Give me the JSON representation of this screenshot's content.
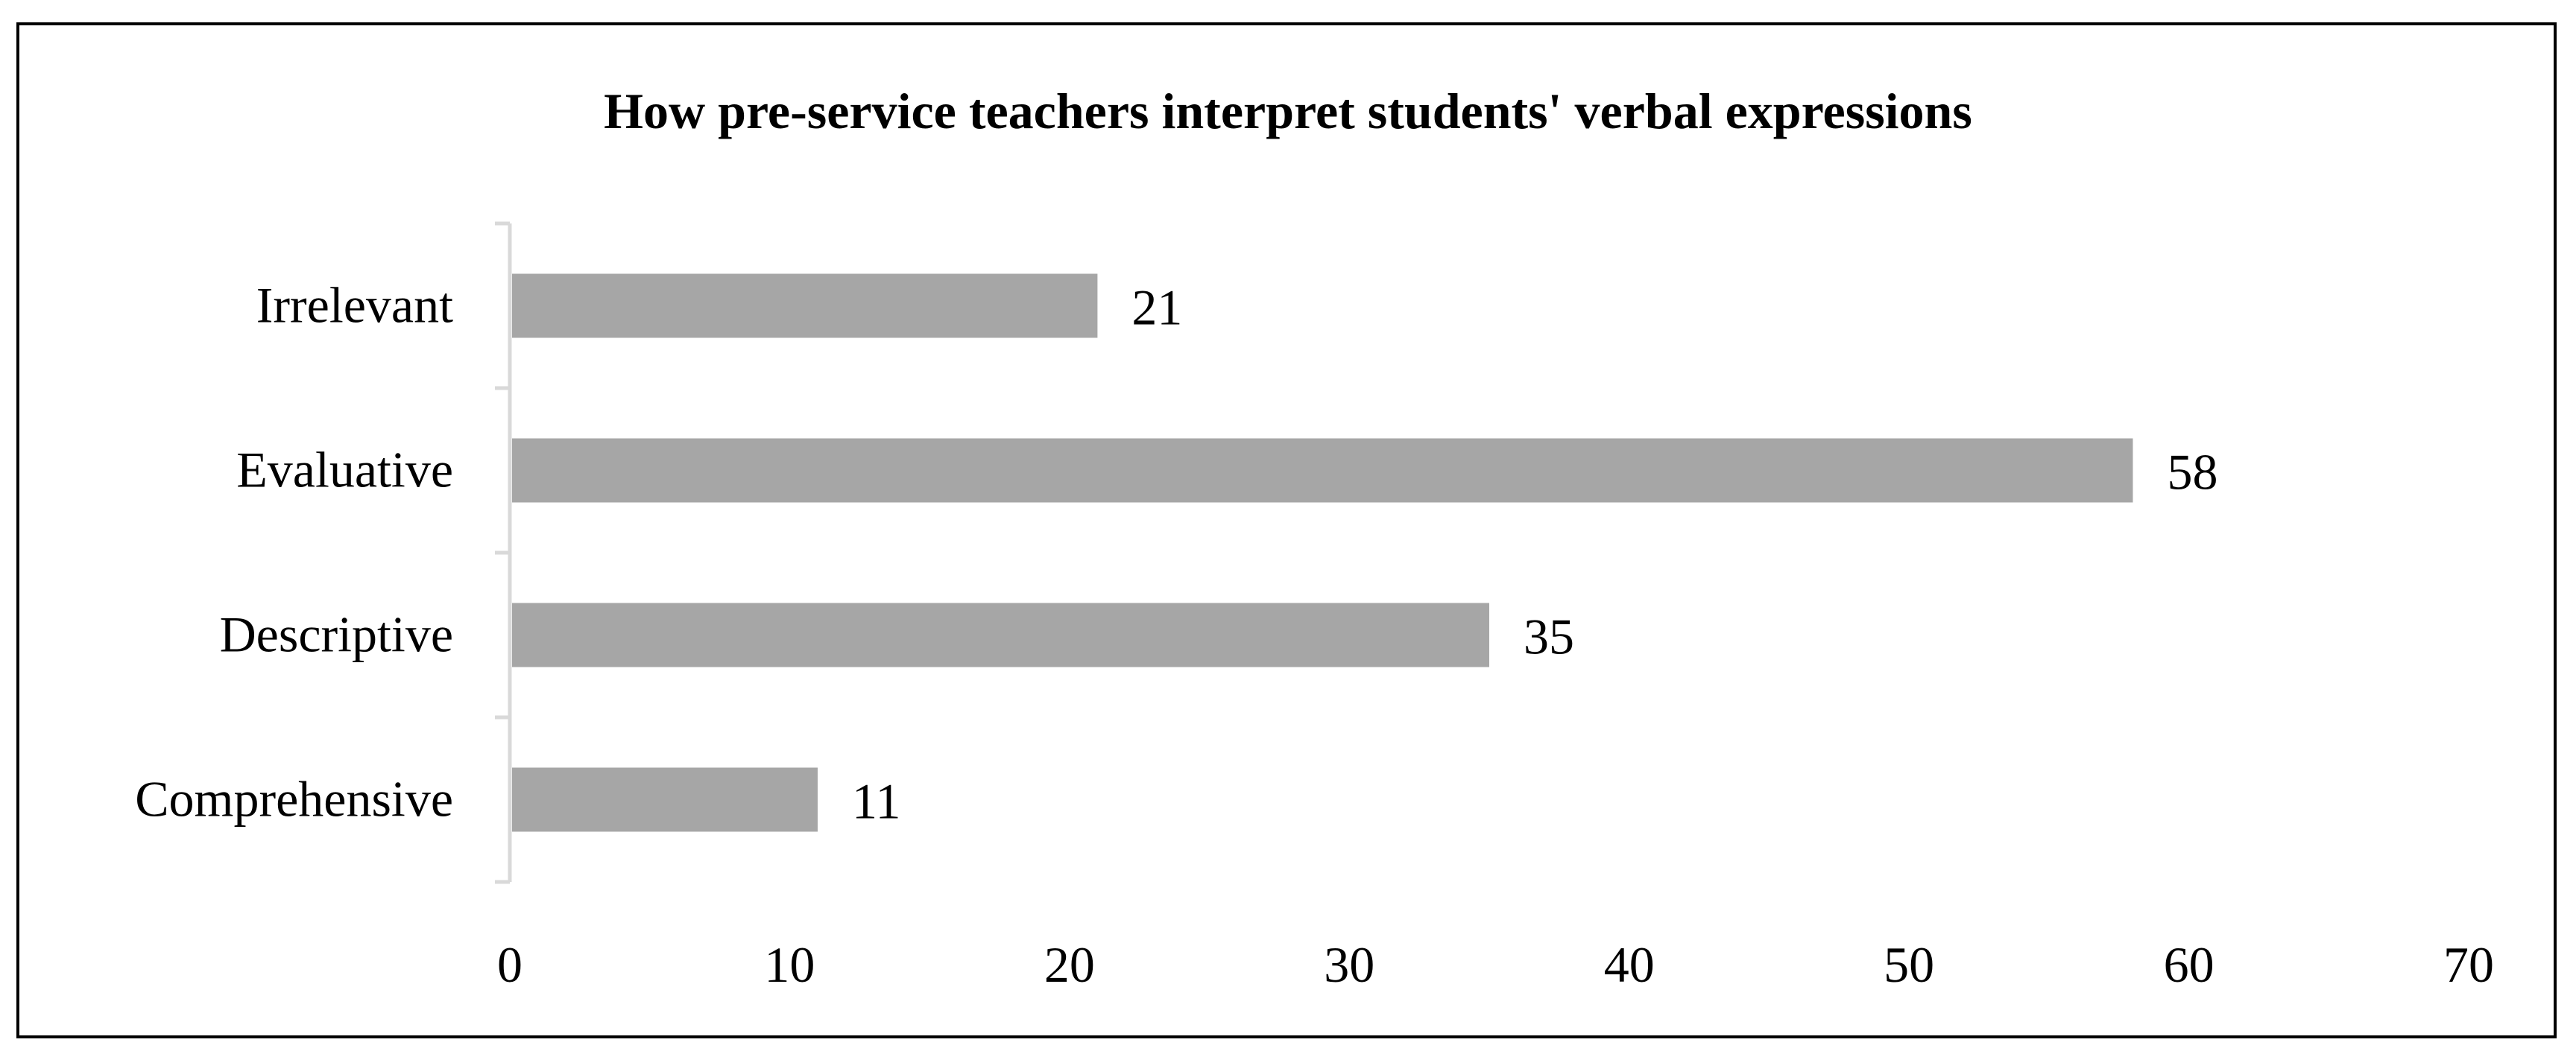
{
  "chart_data": {
    "type": "bar",
    "orientation": "horizontal",
    "title": "How pre-service teachers interpret students' verbal expressions",
    "xlabel": "",
    "ylabel": "",
    "categories": [
      "Irrelevant",
      "Evaluative",
      "Descriptive",
      "Comprehensive"
    ],
    "values": [
      21,
      58,
      35,
      11
    ],
    "xlim": [
      0,
      70
    ],
    "x_ticks": [
      0,
      10,
      20,
      30,
      40,
      50,
      60,
      70
    ],
    "data_labels": true,
    "grid": false,
    "legend": "none",
    "bar_color": "#a6a6a6",
    "axis_color": "#d9d9d9"
  }
}
